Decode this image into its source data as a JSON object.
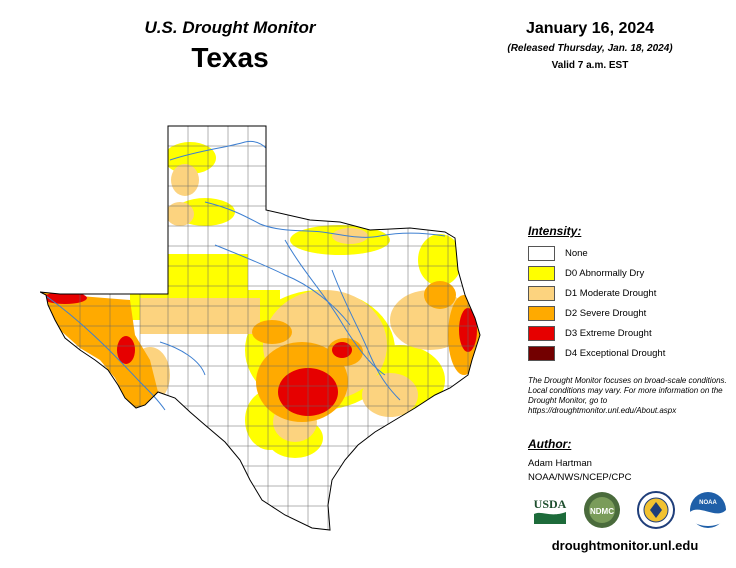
{
  "header": {
    "title": "U.S. Drought Monitor",
    "state": "Texas",
    "date": "January 16, 2024",
    "released": "(Released Thursday, Jan. 18, 2024)",
    "valid": "Valid 7 a.m. EST"
  },
  "legend": {
    "title": "Intensity:",
    "items": [
      {
        "label": "None",
        "color": "#ffffff"
      },
      {
        "label": "D0 Abnormally Dry",
        "color": "#ffff00"
      },
      {
        "label": "D1 Moderate Drought",
        "color": "#fcd37f"
      },
      {
        "label": "D2 Severe Drought",
        "color": "#ffaa00"
      },
      {
        "label": "D3 Extreme Drought",
        "color": "#e60000"
      },
      {
        "label": "D4 Exceptional Drought",
        "color": "#730000"
      }
    ]
  },
  "note": "The Drought Monitor focuses on broad-scale conditions. Local conditions may vary. For more information on the Drought Monitor, go to https://droughtmonitor.unl.edu/About.aspx",
  "author": {
    "heading": "Author:",
    "name": "Adam Hartman",
    "org": "NOAA/NWS/NCEP/CPC"
  },
  "logos": [
    {
      "name": "usda-logo",
      "text": "USDA"
    },
    {
      "name": "ndmc-logo",
      "text": "NDMC"
    },
    {
      "name": "commerce-seal-logo",
      "text": ""
    },
    {
      "name": "noaa-logo",
      "text": "NOAA"
    }
  ],
  "footer": {
    "site": "droughtmonitor.unl.edu"
  }
}
